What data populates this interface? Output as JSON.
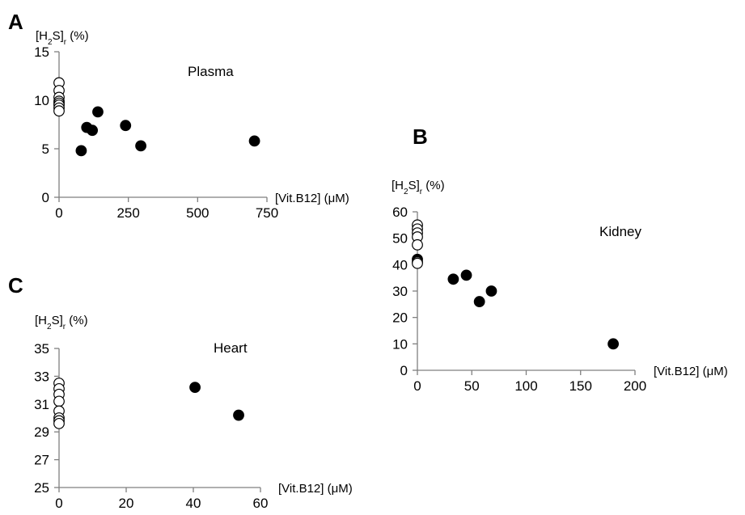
{
  "chart_data": [
    {
      "type": "scatter",
      "panel_letter": "A",
      "ylabel": {
        "main": "[H",
        "sub1": "2",
        "mid": "S]",
        "sub2": "r",
        "tail": " (%)"
      },
      "xlabel": "[Vit.B12] (μM)",
      "annotation": "Plasma",
      "xlim": [
        0,
        750
      ],
      "ylim": [
        0,
        15
      ],
      "x_ticks": [
        0,
        250,
        500,
        750
      ],
      "y_ticks": [
        0,
        5,
        10,
        15
      ],
      "grid": false,
      "legend": "none",
      "series": [
        {
          "marker": "open-circle",
          "points": [
            [
              0,
              11.8
            ],
            [
              0,
              11.0
            ],
            [
              0,
              10.3
            ],
            [
              0,
              9.9
            ],
            [
              0,
              9.7
            ],
            [
              0,
              9.5
            ],
            [
              0,
              9.2
            ],
            [
              0,
              8.9
            ]
          ]
        },
        {
          "marker": "filled-circle",
          "points": [
            [
              80,
              4.8
            ],
            [
              100,
              7.2
            ],
            [
              120,
              6.9
            ],
            [
              140,
              8.8
            ],
            [
              240,
              7.4
            ],
            [
              295,
              5.3
            ],
            [
              705,
              5.8
            ]
          ]
        }
      ]
    },
    {
      "type": "scatter",
      "panel_letter": "B",
      "ylabel": {
        "main": "[H",
        "sub1": "2",
        "mid": "S]",
        "sub2": "r",
        "tail": " (%)"
      },
      "xlabel": "[Vit.B12] (μM)",
      "annotation": "Kidney",
      "xlim": [
        0,
        200
      ],
      "ylim": [
        0,
        60
      ],
      "x_ticks": [
        0,
        50,
        100,
        150,
        200
      ],
      "y_ticks": [
        0,
        10,
        20,
        30,
        40,
        50,
        60
      ],
      "grid": false,
      "legend": "none",
      "series": [
        {
          "marker": "filled-circle",
          "points": [
            [
              0,
              42
            ]
          ]
        },
        {
          "marker": "open-circle",
          "points": [
            [
              0,
              55
            ],
            [
              0,
              53.5
            ],
            [
              0,
              52
            ],
            [
              0,
              50.5
            ],
            [
              0,
              47.5
            ],
            [
              0,
              41
            ],
            [
              0,
              40.5
            ]
          ]
        },
        {
          "marker": "filled-circle",
          "points": [
            [
              33,
              34.5
            ],
            [
              45,
              36
            ],
            [
              57,
              26
            ],
            [
              68,
              30
            ],
            [
              180,
              10
            ]
          ]
        }
      ]
    },
    {
      "type": "scatter",
      "panel_letter": "C",
      "ylabel": {
        "main": "[H",
        "sub1": "2",
        "mid": "S]",
        "sub2": "r",
        "tail": " (%)"
      },
      "xlabel": "[Vit.B12] (μM)",
      "annotation": "Heart",
      "xlim": [
        0,
        60
      ],
      "ylim": [
        25,
        35
      ],
      "x_ticks": [
        0,
        20,
        40,
        60
      ],
      "y_ticks": [
        25,
        27,
        29,
        31,
        33,
        35
      ],
      "grid": false,
      "legend": "none",
      "series": [
        {
          "marker": "open-circle",
          "points": [
            [
              0,
              32.5
            ],
            [
              0,
              32.1
            ],
            [
              0,
              31.7
            ],
            [
              0,
              31.2
            ],
            [
              0,
              30.5
            ],
            [
              0,
              30.0
            ],
            [
              0,
              29.8
            ],
            [
              0,
              29.6
            ]
          ]
        },
        {
          "marker": "filled-circle",
          "points": [
            [
              40.5,
              32.2
            ],
            [
              53.5,
              30.2
            ]
          ]
        }
      ]
    }
  ]
}
